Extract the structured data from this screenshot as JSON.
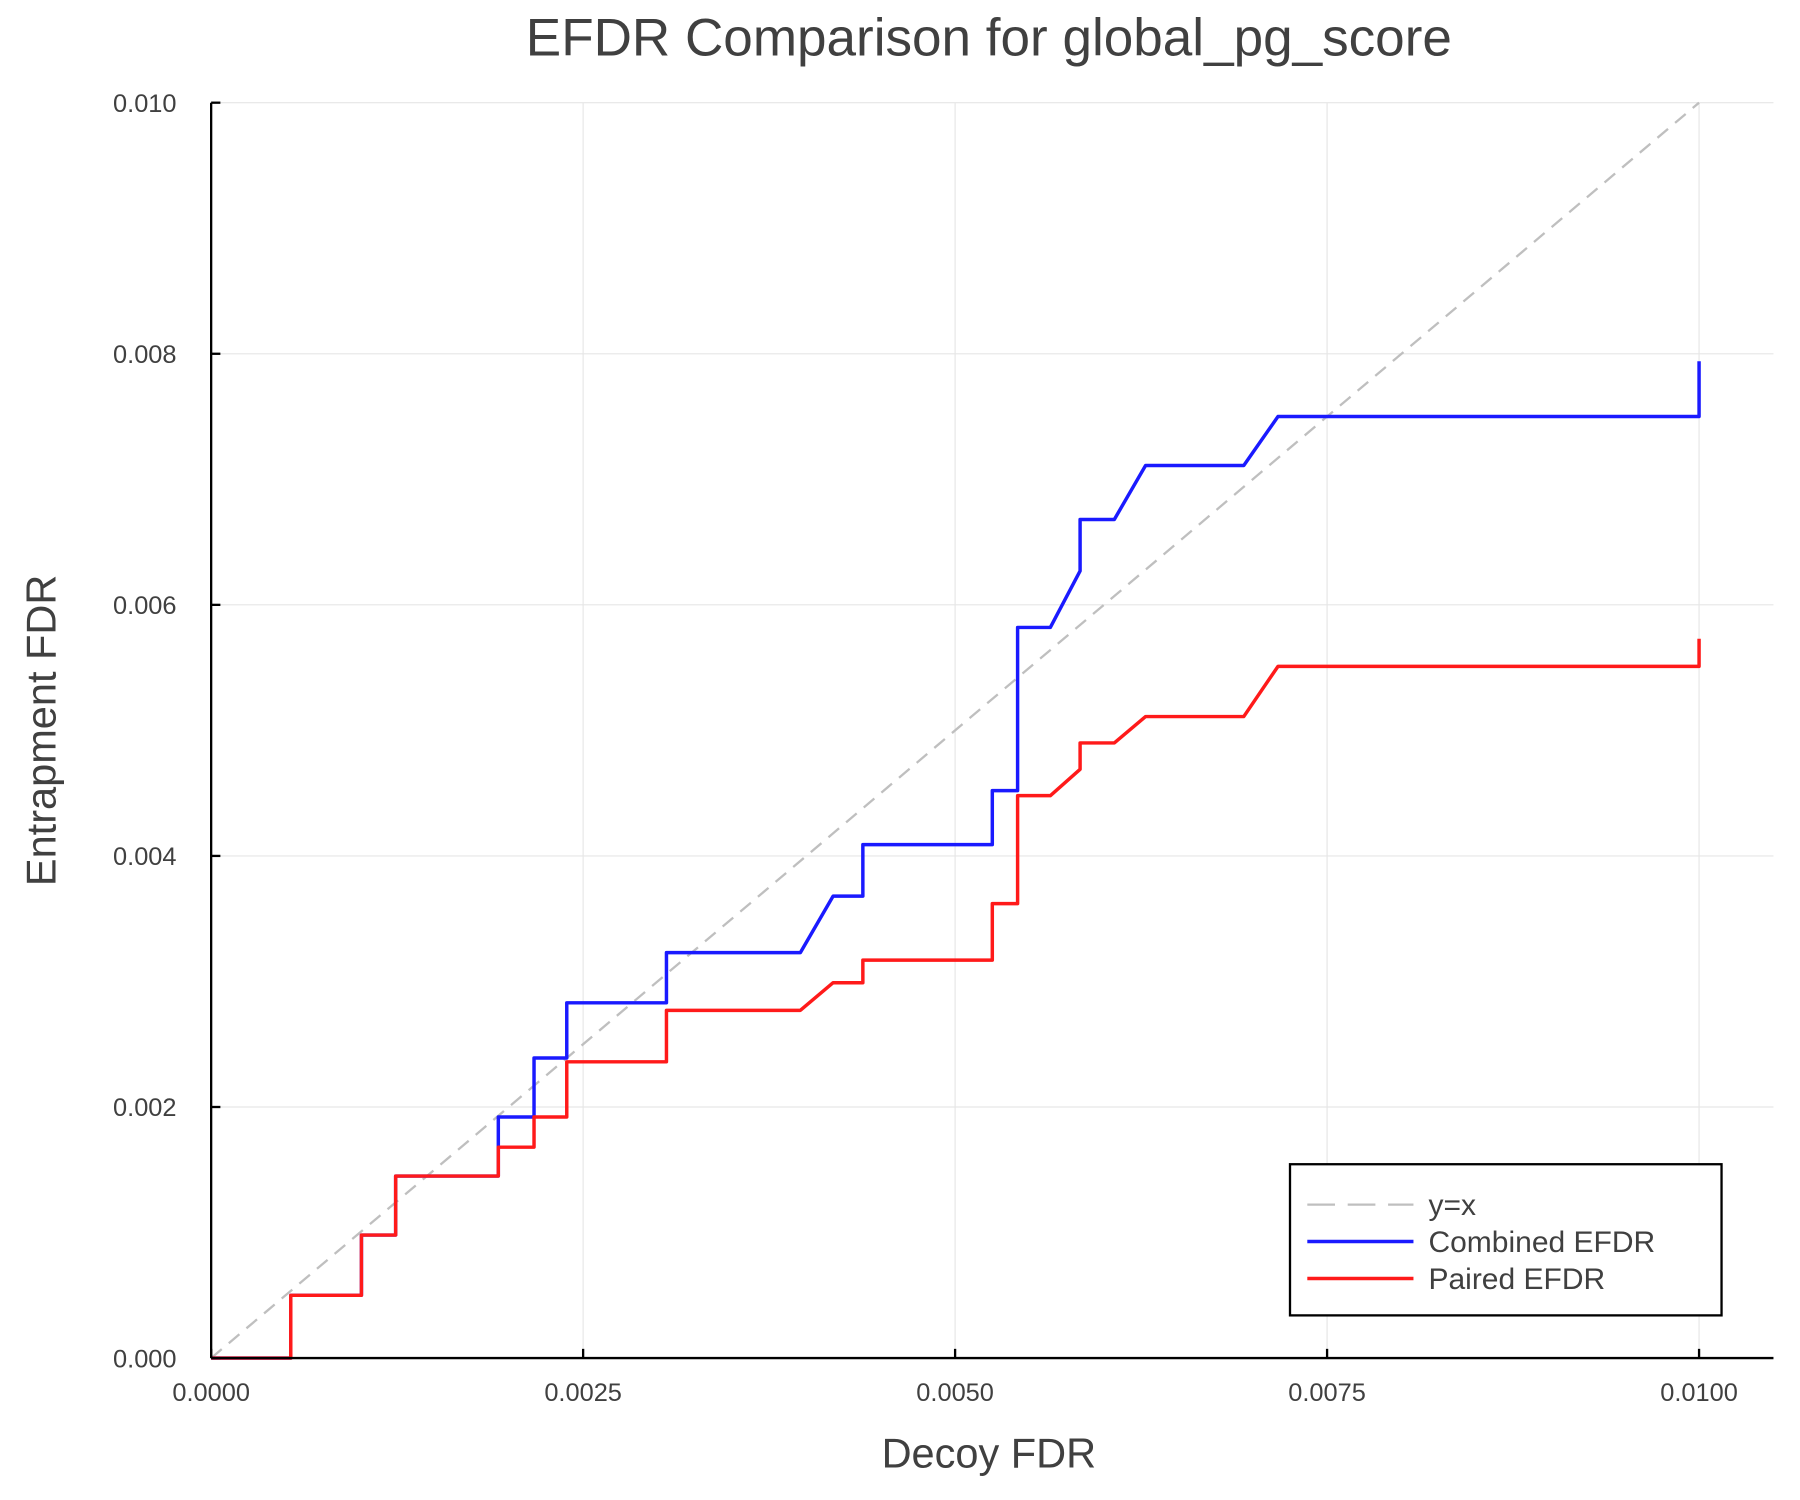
{
  "chart_data": {
    "type": "line",
    "title": "EFDR Comparison for global_pg_score",
    "xlabel": "Decoy FDR",
    "ylabel": "Entrapment FDR",
    "xlim": [
      0,
      0.0105
    ],
    "ylim": [
      0,
      0.01
    ],
    "xticks": [
      0,
      0.0025,
      0.005,
      0.0075,
      0.01
    ],
    "xtick_labels": [
      "0.0000",
      "0.0025",
      "0.0050",
      "0.0075",
      "0.0100"
    ],
    "yticks": [
      0,
      0.002,
      0.004,
      0.006,
      0.008,
      0.01
    ],
    "ytick_labels": [
      "0.000",
      "0.002",
      "0.004",
      "0.006",
      "0.008",
      "0.010"
    ],
    "grid": true,
    "legend_position": "bottom-right",
    "series": [
      {
        "name": "y=x",
        "color": "#bfbfbf",
        "style": "dashed",
        "points": [
          [
            0,
            0
          ],
          [
            0.01,
            0.01
          ]
        ]
      },
      {
        "name": "Combined EFDR",
        "color": "#1a1aff",
        "style": "solid",
        "points": [
          [
            0,
            0
          ],
          [
            0.000535,
            0
          ],
          [
            0.000535,
            0.0005
          ],
          [
            0.00101,
            0.0005
          ],
          [
            0.00101,
            0.00098
          ],
          [
            0.00124,
            0.00098
          ],
          [
            0.00124,
            0.00145
          ],
          [
            0.00193,
            0.00145
          ],
          [
            0.00193,
            0.00192
          ],
          [
            0.00217,
            0.00192
          ],
          [
            0.00217,
            0.00239
          ],
          [
            0.00239,
            0.00239
          ],
          [
            0.00239,
            0.00283
          ],
          [
            0.00306,
            0.00283
          ],
          [
            0.00306,
            0.00323
          ],
          [
            0.00396,
            0.00323
          ],
          [
            0.00418,
            0.00368
          ],
          [
            0.00438,
            0.00368
          ],
          [
            0.00438,
            0.00409
          ],
          [
            0.00525,
            0.00409
          ],
          [
            0.00525,
            0.00452
          ],
          [
            0.00542,
            0.00452
          ],
          [
            0.00542,
            0.00582
          ],
          [
            0.00564,
            0.00582
          ],
          [
            0.00584,
            0.00627
          ],
          [
            0.00584,
            0.00668
          ],
          [
            0.00607,
            0.00668
          ],
          [
            0.00628,
            0.00711
          ],
          [
            0.00694,
            0.00711
          ],
          [
            0.00717,
            0.0075
          ],
          [
            0.01,
            0.0075
          ],
          [
            0.01,
            0.00794
          ]
        ]
      },
      {
        "name": "Paired EFDR",
        "color": "#ff1a1a",
        "style": "solid",
        "points": [
          [
            0,
            0
          ],
          [
            0.000535,
            0
          ],
          [
            0.000535,
            0.0005
          ],
          [
            0.00101,
            0.0005
          ],
          [
            0.00101,
            0.00098
          ],
          [
            0.00124,
            0.00098
          ],
          [
            0.00124,
            0.00145
          ],
          [
            0.00193,
            0.00145
          ],
          [
            0.00193,
            0.00168
          ],
          [
            0.00217,
            0.00168
          ],
          [
            0.00217,
            0.00192
          ],
          [
            0.00239,
            0.00192
          ],
          [
            0.00239,
            0.00236
          ],
          [
            0.00306,
            0.00236
          ],
          [
            0.00306,
            0.00277
          ],
          [
            0.00396,
            0.00277
          ],
          [
            0.00418,
            0.00299
          ],
          [
            0.00438,
            0.00299
          ],
          [
            0.00438,
            0.00317
          ],
          [
            0.00525,
            0.00317
          ],
          [
            0.00525,
            0.00362
          ],
          [
            0.00542,
            0.00362
          ],
          [
            0.00542,
            0.00448
          ],
          [
            0.00564,
            0.00448
          ],
          [
            0.00584,
            0.00469
          ],
          [
            0.00584,
            0.0049
          ],
          [
            0.00607,
            0.0049
          ],
          [
            0.00628,
            0.00511
          ],
          [
            0.00694,
            0.00511
          ],
          [
            0.00717,
            0.00551
          ],
          [
            0.01,
            0.00551
          ],
          [
            0.01,
            0.00573
          ]
        ]
      }
    ]
  }
}
